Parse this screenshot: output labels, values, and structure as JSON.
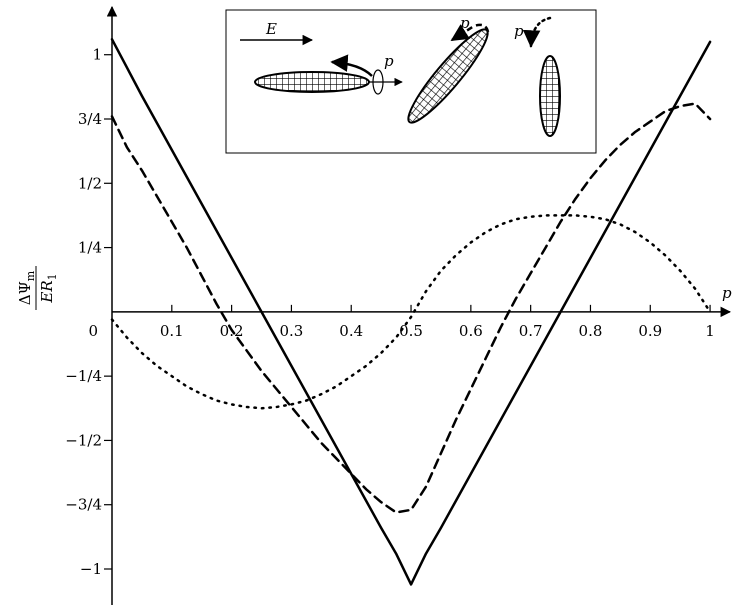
{
  "chart_data": {
    "type": "line",
    "x": [
      0,
      0.025,
      0.05,
      0.075,
      0.1,
      0.125,
      0.15,
      0.175,
      0.2,
      0.225,
      0.25,
      0.275,
      0.3,
      0.325,
      0.35,
      0.375,
      0.4,
      0.425,
      0.45,
      0.475,
      0.5,
      0.525,
      0.55,
      0.575,
      0.6,
      0.625,
      0.65,
      0.675,
      0.7,
      0.725,
      0.75,
      0.775,
      0.8,
      0.825,
      0.85,
      0.875,
      0.9,
      0.925,
      0.95,
      0.975,
      1
    ],
    "series": [
      {
        "style": "solid",
        "color": "#000000",
        "values": [
          1.06,
          0.95,
          0.84,
          0.735,
          0.63,
          0.525,
          0.42,
          0.315,
          0.21,
          0.105,
          0,
          -0.105,
          -0.21,
          -0.315,
          -0.42,
          -0.525,
          -0.63,
          -0.735,
          -0.84,
          -0.94,
          -1.06,
          -0.94,
          -0.84,
          -0.735,
          -0.63,
          -0.525,
          -0.42,
          -0.315,
          -0.21,
          -0.105,
          0,
          0.105,
          0.21,
          0.315,
          0.42,
          0.525,
          0.63,
          0.735,
          0.84,
          0.945,
          1.05
        ]
      },
      {
        "style": "dashed",
        "color": "#000000",
        "values": [
          0.76,
          0.64,
          0.55,
          0.45,
          0.35,
          0.25,
          0.14,
          0.03,
          -0.07,
          -0.15,
          -0.23,
          -0.3,
          -0.37,
          -0.44,
          -0.51,
          -0.57,
          -0.63,
          -0.69,
          -0.74,
          -0.78,
          -0.77,
          -0.68,
          -0.55,
          -0.42,
          -0.3,
          -0.18,
          -0.06,
          0.05,
          0.15,
          0.25,
          0.35,
          0.44,
          0.52,
          0.59,
          0.65,
          0.7,
          0.74,
          0.78,
          0.8,
          0.81,
          0.75
        ]
      },
      {
        "style": "dotted",
        "color": "#000000",
        "values": [
          -0.03,
          -0.1,
          -0.16,
          -0.21,
          -0.25,
          -0.29,
          -0.32,
          -0.345,
          -0.36,
          -0.37,
          -0.375,
          -0.37,
          -0.36,
          -0.345,
          -0.32,
          -0.29,
          -0.25,
          -0.21,
          -0.16,
          -0.1,
          -0.02,
          0.08,
          0.16,
          0.22,
          0.27,
          0.31,
          0.34,
          0.36,
          0.37,
          0.375,
          0.375,
          0.375,
          0.37,
          0.36,
          0.34,
          0.31,
          0.27,
          0.22,
          0.16,
          0.09,
          0
        ]
      }
    ],
    "xlim": [
      0,
      1.04
    ],
    "ylim": [
      -1.14,
      1.17
    ],
    "xticks": [
      0.1,
      0.2,
      0.3,
      0.4,
      0.5,
      0.6,
      0.7,
      0.8,
      0.9,
      1
    ],
    "yticks": [
      1,
      {
        "value": 0.75,
        "label": "3/4"
      },
      {
        "value": 0.5,
        "label": "1/2"
      },
      {
        "value": 0.25,
        "label": "1/4"
      },
      0,
      {
        "value": -0.25,
        "label": "−1/4"
      },
      {
        "value": -0.5,
        "label": "−1/2"
      },
      {
        "value": -0.75,
        "label": "−3/4"
      },
      {
        "value": -1,
        "label": "−1"
      }
    ],
    "xlabel": "p",
    "ylabel": {
      "numerator": "ΔΨ",
      "numerator_sub": "m",
      "denominator": "ER",
      "denominator_sub": "1"
    },
    "inset": {
      "labels": [
        "E",
        "p",
        "p",
        "p"
      ]
    },
    "grid": false
  }
}
